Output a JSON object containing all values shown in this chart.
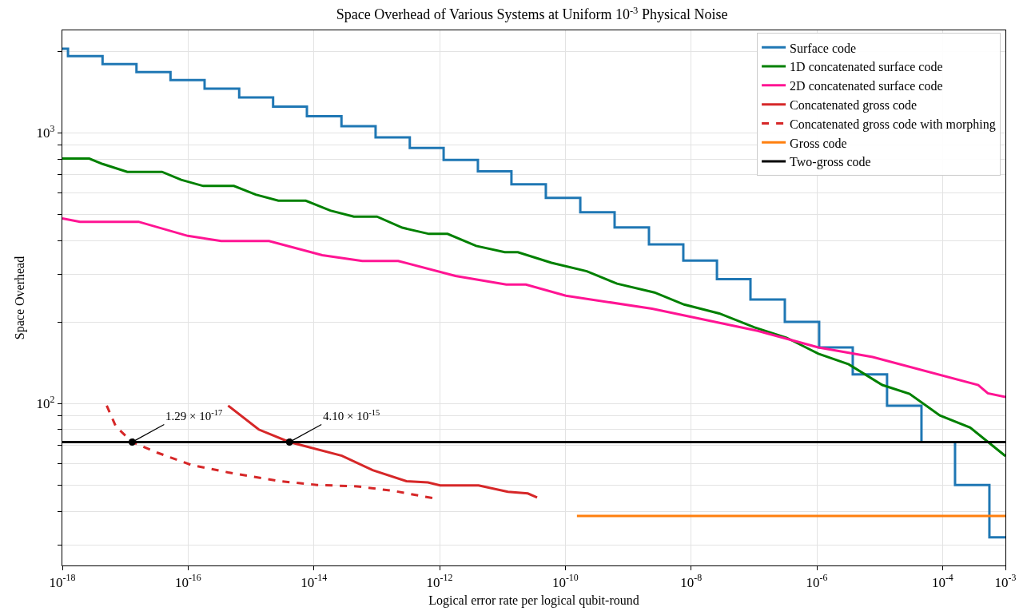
{
  "chart_data": {
    "type": "line",
    "title": "Space Overhead of Various Systems at Uniform 10$^{-3}$ Physical Noise",
    "xlabel": "Logical error rate per logical qubit-round",
    "ylabel": "Space Overhead",
    "log": "xy",
    "grid": true,
    "legend": "top right",
    "xlim": [
      1e-18,
      0.001
    ],
    "xticks": [
      {
        "value": 1e-18,
        "label": "10$^{-18}$"
      },
      {
        "value": 1e-16,
        "label": "10$^{-16}$"
      },
      {
        "value": 1e-14,
        "label": "10$^{-14}$"
      },
      {
        "value": 1e-12,
        "label": "10$^{-12}$"
      },
      {
        "value": 1e-10,
        "label": "10$^{-10}$"
      },
      {
        "value": 1e-08,
        "label": "10$^{-8}$"
      },
      {
        "value": 1e-06,
        "label": "10$^{-6}$"
      },
      {
        "value": 0.0001,
        "label": "10$^{-4}$"
      },
      {
        "value": 0.001,
        "label": "10$^{-3}$"
      }
    ],
    "ylim": [
      25.2,
      2390
    ],
    "yticks": [
      {
        "value": 30,
        "label": null
      },
      {
        "value": 40,
        "label": null
      },
      {
        "value": 50,
        "label": null
      },
      {
        "value": 60,
        "label": null
      },
      {
        "value": 70,
        "label": null
      },
      {
        "value": 80,
        "label": null
      },
      {
        "value": 90,
        "label": null
      },
      {
        "value": 100,
        "label": "10$^{2}$"
      },
      {
        "value": 200,
        "label": null
      },
      {
        "value": 300,
        "label": null
      },
      {
        "value": 400,
        "label": null
      },
      {
        "value": 500,
        "label": null
      },
      {
        "value": 600,
        "label": null
      },
      {
        "value": 700,
        "label": null
      },
      {
        "value": 800,
        "label": null
      },
      {
        "value": 900,
        "label": null
      },
      {
        "value": 1000,
        "label": "10$^{3}$"
      },
      {
        "value": 2000,
        "label": null
      }
    ],
    "series": [
      {
        "name": "Surface code",
        "type": "step",
        "color": "#1f77b4",
        "x": [
          1e-18,
          1.23e-18,
          4.36e-18,
          1.51e-17,
          5.25e-17,
          1.83e-16,
          6.5e-16,
          2.25e-15,
          7.76e-15,
          2.75e-14,
          9.6e-14,
          3.36e-13,
          1.16e-12,
          4.07e-12,
          1.39e-11,
          4.9e-11,
          1.73e-10,
          6.08e-10,
          2.14e-09,
          7.53e-09,
          2.58e-08,
          8.81e-08,
          3.1e-07,
          1.09e-06,
          3.73e-06,
          1.31e-05,
          4.62e-05,
          0.000158,
          0.000556,
          0.001
        ],
        "values": [
          2045,
          1919,
          1794,
          1676,
          1565,
          1456,
          1351,
          1249,
          1151,
          1058,
          962,
          879,
          794,
          720,
          645,
          575,
          509,
          447,
          387,
          337,
          288,
          242,
          200,
          161,
          128,
          98,
          72,
          50,
          32,
          32
        ]
      },
      {
        "name": "1D concatenated surface code",
        "color": "#008000",
        "x": [
          1e-18,
          2.68e-18,
          4.36e-18,
          1.08e-17,
          3.85e-17,
          7.77e-17,
          1.74e-16,
          5.36e-16,
          1.19e-15,
          2.73e-15,
          7.46e-15,
          1.83e-14,
          4.33e-14,
          1.01e-13,
          2.55e-13,
          6.78e-13,
          1.34e-12,
          3.82e-12,
          1.09e-11,
          1.76e-11,
          6.01e-11,
          2.2e-10,
          6.64e-10,
          2.62e-09,
          7.76e-09,
          2.81e-08,
          1.02e-07,
          3.29e-07,
          1.06e-06,
          3.22e-06,
          1.1e-05,
          2.98e-05,
          9.06e-05,
          0.000275,
          0.001
        ],
        "values": [
          803,
          803,
          767,
          717,
          717,
          670,
          636,
          636,
          591,
          561,
          561,
          516,
          490,
          490,
          446,
          423,
          423,
          382,
          362,
          362,
          331,
          308,
          277,
          257,
          232,
          215,
          191,
          175,
          152.6,
          139.5,
          117,
          108.6,
          90.3,
          81.5,
          63.9
        ]
      },
      {
        "name": "2D concatenated surface code",
        "color": "#ff1493",
        "x": [
          1e-18,
          1.91e-18,
          1.63e-17,
          9.9e-17,
          3.36e-16,
          1.94e-15,
          1.36e-14,
          5.9e-14,
          2.2e-13,
          1.79e-12,
          1.15e-11,
          2.36e-11,
          1.02e-10,
          2.4e-09,
          1.15e-07,
          1.06e-06,
          7.74e-06,
          0.000369,
          0.000525,
          0.001
        ],
        "values": [
          483,
          469,
          469,
          416,
          398,
          398,
          353,
          336,
          336,
          296,
          275,
          275,
          250,
          224,
          185.5,
          161,
          148.5,
          117,
          109,
          105.7
        ]
      },
      {
        "name": "Concatenated gross code",
        "color": "#d62728",
        "x": [
          4.33e-16,
          1.33e-15,
          4.1e-15,
          2.79e-14,
          8.61e-14,
          2.97e-13,
          6.52e-13,
          1.02e-12,
          4.17e-12,
          1.22e-11,
          2.53e-11,
          3.56e-11
        ],
        "values": [
          98.2,
          80.1,
          72,
          64.1,
          56.7,
          51.6,
          51.1,
          49.8,
          49.8,
          47.2,
          46.5,
          44.9
        ]
      },
      {
        "name": "Concatenated gross code with morphing",
        "line_style": "dashed",
        "color": "#d62728",
        "x": [
          5.08e-18,
          7.11e-18,
          1.29e-17,
          3.24e-17,
          1.12e-16,
          4.33e-16,
          2.94e-15,
          1.13e-14,
          4.89e-14,
          1.88e-13,
          8.15e-13
        ],
        "values": [
          98.2,
          82.2,
          72,
          65.8,
          59.3,
          55.6,
          51.6,
          50.0,
          49.4,
          47.5,
          44.6
        ]
      },
      {
        "name": "Gross code",
        "color": "#ff7f0e",
        "x": [
          1.53e-10,
          0.001
        ],
        "values": [
          38.4,
          38.4
        ]
      },
      {
        "name": "Two-gross code",
        "color": "#000000",
        "x": [
          1e-18,
          0.001
        ],
        "values": [
          72,
          72
        ]
      },
      {
        "type": "scatter",
        "marker": "circle",
        "color": "#000000",
        "x": [
          1.29e-17,
          4.1e-15
        ],
        "values": [
          72,
          72
        ]
      }
    ],
    "annotations": [
      {
        "text": "1.29 × 10$^{-17}$",
        "x": 1.29e-17,
        "y": 72
      },
      {
        "text": "4.10 × 10$^{-15}$",
        "x": 4.1e-15,
        "y": 72
      }
    ]
  }
}
